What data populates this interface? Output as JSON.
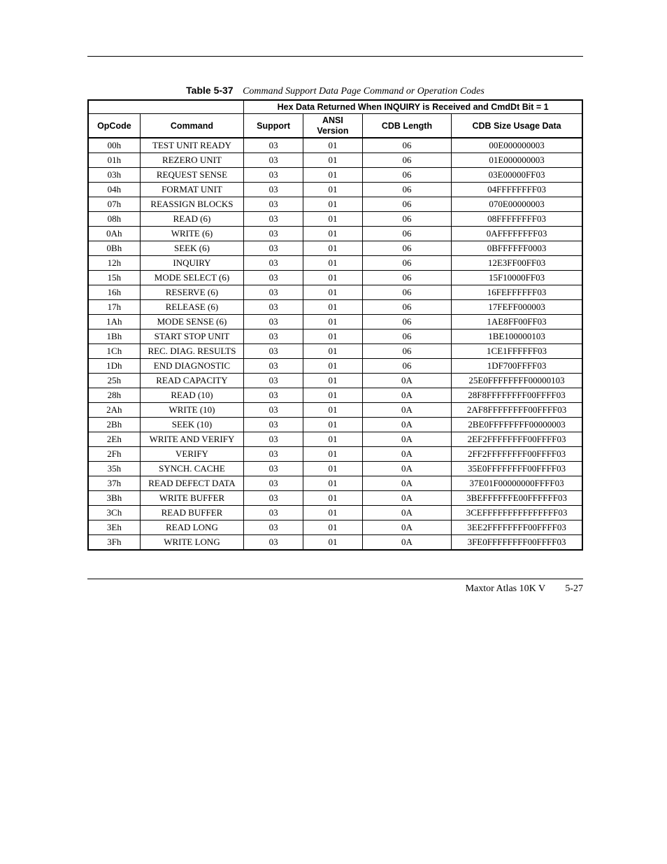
{
  "caption": {
    "label": "Table 5-37",
    "title": "Command Support Data Page Command or Operation Codes"
  },
  "spanning_header": "Hex Data Returned When INQUIRY is Received and CmdDt Bit = 1",
  "columns": [
    "OpCode",
    "Command",
    "Support",
    "ANSI Version",
    "CDB Length",
    "CDB Size Usage Data"
  ],
  "rows": [
    {
      "opcode": "00h",
      "command": "TEST UNIT READY",
      "support": "03",
      "ansi": "01",
      "cdb": "06",
      "usage": "00E000000003"
    },
    {
      "opcode": "01h",
      "command": "REZERO UNIT",
      "support": "03",
      "ansi": "01",
      "cdb": "06",
      "usage": "01E000000003"
    },
    {
      "opcode": "03h",
      "command": "REQUEST SENSE",
      "support": "03",
      "ansi": "01",
      "cdb": "06",
      "usage": "03E00000FF03"
    },
    {
      "opcode": "04h",
      "command": "FORMAT UNIT",
      "support": "03",
      "ansi": "01",
      "cdb": "06",
      "usage": "04FFFFFFFF03"
    },
    {
      "opcode": "07h",
      "command": "REASSIGN BLOCKS",
      "support": "03",
      "ansi": "01",
      "cdb": "06",
      "usage": "070E00000003"
    },
    {
      "opcode": "08h",
      "command": "READ (6)",
      "support": "03",
      "ansi": "01",
      "cdb": "06",
      "usage": "08FFFFFFFF03"
    },
    {
      "opcode": "0Ah",
      "command": "WRITE (6)",
      "support": "03",
      "ansi": "01",
      "cdb": "06",
      "usage": "0AFFFFFFFF03"
    },
    {
      "opcode": "0Bh",
      "command": "SEEK (6)",
      "support": "03",
      "ansi": "01",
      "cdb": "06",
      "usage": "0BFFFFFF0003"
    },
    {
      "opcode": "12h",
      "command": "INQUIRY",
      "support": "03",
      "ansi": "01",
      "cdb": "06",
      "usage": "12E3FF00FF03"
    },
    {
      "opcode": "15h",
      "command": "MODE SELECT (6)",
      "support": "03",
      "ansi": "01",
      "cdb": "06",
      "usage": "15F10000FF03"
    },
    {
      "opcode": "16h",
      "command": "RESERVE (6)",
      "support": "03",
      "ansi": "01",
      "cdb": "06",
      "usage": "16FEFFFFFF03"
    },
    {
      "opcode": "17h",
      "command": "RELEASE (6)",
      "support": "03",
      "ansi": "01",
      "cdb": "06",
      "usage": "17FEFF000003"
    },
    {
      "opcode": "1Ah",
      "command": "MODE SENSE (6)",
      "support": "03",
      "ansi": "01",
      "cdb": "06",
      "usage": "1AE8FF00FF03"
    },
    {
      "opcode": "1Bh",
      "command": "START STOP UNIT",
      "support": "03",
      "ansi": "01",
      "cdb": "06",
      "usage": "1BE100000103"
    },
    {
      "opcode": "1Ch",
      "command": "REC. DIAG. RESULTS",
      "support": "03",
      "ansi": "01",
      "cdb": "06",
      "usage": "1CE1FFFFFF03"
    },
    {
      "opcode": "1Dh",
      "command": "END DIAGNOSTIC",
      "support": "03",
      "ansi": "01",
      "cdb": "06",
      "usage": "1DF700FFFF03"
    },
    {
      "opcode": "25h",
      "command": "READ CAPACITY",
      "support": "03",
      "ansi": "01",
      "cdb": "0A",
      "usage": "25E0FFFFFFFF00000103"
    },
    {
      "opcode": "28h",
      "command": "READ (10)",
      "support": "03",
      "ansi": "01",
      "cdb": "0A",
      "usage": "28F8FFFFFFFF00FFFF03"
    },
    {
      "opcode": "2Ah",
      "command": "WRITE (10)",
      "support": "03",
      "ansi": "01",
      "cdb": "0A",
      "usage": "2AF8FFFFFFFF00FFFF03"
    },
    {
      "opcode": "2Bh",
      "command": "SEEK (10)",
      "support": "03",
      "ansi": "01",
      "cdb": "0A",
      "usage": "2BE0FFFFFFFF00000003"
    },
    {
      "opcode": "2Eh",
      "command": "WRITE AND VERIFY",
      "support": "03",
      "ansi": "01",
      "cdb": "0A",
      "usage": "2EF2FFFFFFFF00FFFF03"
    },
    {
      "opcode": "2Fh",
      "command": "VERIFY",
      "support": "03",
      "ansi": "01",
      "cdb": "0A",
      "usage": "2FF2FFFFFFFF00FFFF03"
    },
    {
      "opcode": "35h",
      "command": "SYNCH. CACHE",
      "support": "03",
      "ansi": "01",
      "cdb": "0A",
      "usage": "35E0FFFFFFFF00FFFF03"
    },
    {
      "opcode": "37h",
      "command": "READ DEFECT DATA",
      "support": "03",
      "ansi": "01",
      "cdb": "0A",
      "usage": "37E01F00000000FFFF03"
    },
    {
      "opcode": "3Bh",
      "command": "WRITE BUFFER",
      "support": "03",
      "ansi": "01",
      "cdb": "0A",
      "usage": "3BEFFFFFFE00FFFFFF03"
    },
    {
      "opcode": "3Ch",
      "command": "READ BUFFER",
      "support": "03",
      "ansi": "01",
      "cdb": "0A",
      "usage": "3CEFFFFFFFFFFFFFFF03"
    },
    {
      "opcode": "3Eh",
      "command": "READ LONG",
      "support": "03",
      "ansi": "01",
      "cdb": "0A",
      "usage": "3EE2FFFFFFFF00FFFF03"
    },
    {
      "opcode": "3Fh",
      "command": "WRITE LONG",
      "support": "03",
      "ansi": "01",
      "cdb": "0A",
      "usage": "3FE0FFFFFFFF00FFFF03"
    }
  ],
  "footer": {
    "docname": "Maxtor Atlas 10K V",
    "pagenum": "5-27"
  },
  "styling": {
    "page_bg": "#ffffff",
    "text_color": "#000000",
    "border_color": "#000000",
    "body_font": "Times New Roman",
    "header_font": "Arial",
    "caption_fontsize_pt": 11,
    "cell_fontsize_pt": 10
  }
}
